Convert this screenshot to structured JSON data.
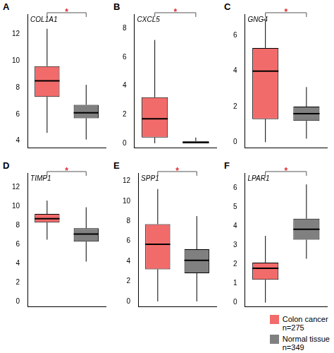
{
  "chart_data": [
    {
      "type": "boxplot",
      "panel": "A",
      "title": "COL1A1",
      "significance": "*",
      "ylim": [
        3.5,
        13.5
      ],
      "yticks": [
        4,
        6,
        8,
        10,
        12
      ],
      "tick_labels": "y",
      "grid": false,
      "series": [
        {
          "name": "Colon cancer",
          "count_label": "n=275",
          "color": "#f26b6b",
          "whisker_low": 4.6,
          "q1": 7.3,
          "median": 8.5,
          "q3": 9.6,
          "whisker_high": 12.4
        },
        {
          "name": "Normal tissue",
          "count_label": "n=349",
          "color": "#808080",
          "whisker_low": 4.1,
          "q1": 5.7,
          "median": 6.1,
          "q3": 6.7,
          "whisker_high": 8.2
        }
      ]
    },
    {
      "type": "boxplot",
      "panel": "B",
      "title": "CXCL5",
      "significance": "*",
      "ylim": [
        -0.3,
        9
      ],
      "yticks": [
        0,
        2,
        4,
        6,
        8
      ],
      "tick_labels": "y",
      "grid": false,
      "series": [
        {
          "name": "Colon cancer",
          "count_label": "n=275",
          "color": "#f26b6b",
          "whisker_low": 0,
          "q1": 0.4,
          "median": 1.7,
          "q3": 3.2,
          "whisker_high": 7.2
        },
        {
          "name": "Normal tissue",
          "count_label": "n=349",
          "color": "#808080",
          "whisker_low": 0,
          "q1": 0,
          "median": 0.05,
          "q3": 0.15,
          "whisker_high": 0.4
        }
      ]
    },
    {
      "type": "boxplot",
      "panel": "C",
      "title": "GNG4",
      "significance": "*",
      "ylim": [
        -0.3,
        7.2
      ],
      "yticks": [
        0,
        2,
        4,
        6
      ],
      "tick_labels": "y",
      "grid": false,
      "series": [
        {
          "name": "Colon cancer",
          "count_label": "n=275",
          "color": "#f26b6b",
          "whisker_low": 0,
          "q1": 1.3,
          "median": 4.0,
          "q3": 5.3,
          "whisker_high": 6.8
        },
        {
          "name": "Normal tissue",
          "count_label": "n=349",
          "color": "#808080",
          "whisker_low": 0.2,
          "q1": 1.2,
          "median": 1.6,
          "q3": 2.0,
          "whisker_high": 3.1
        }
      ]
    },
    {
      "type": "boxplot",
      "panel": "D",
      "title": "TIMP1",
      "significance": "*",
      "ylim": [
        -0.5,
        13.5
      ],
      "yticks": [
        0,
        2,
        4,
        6,
        8,
        10,
        12
      ],
      "tick_labels": "y",
      "grid": false,
      "series": [
        {
          "name": "Colon cancer",
          "count_label": "n=275",
          "color": "#f26b6b",
          "whisker_low": 6.5,
          "q1": 8.3,
          "median": 8.7,
          "q3": 9.2,
          "whisker_high": 10.6
        },
        {
          "name": "Normal tissue",
          "count_label": "n=349",
          "color": "#808080",
          "whisker_low": 4.2,
          "q1": 6.3,
          "median": 7.1,
          "q3": 7.7,
          "whisker_high": 9.9
        }
      ]
    },
    {
      "type": "boxplot",
      "panel": "E",
      "title": "SPP1",
      "significance": "*",
      "ylim": [
        -0.5,
        12.8
      ],
      "yticks": [
        0,
        2,
        4,
        6,
        8,
        10,
        12
      ],
      "tick_labels": "y",
      "grid": false,
      "series": [
        {
          "name": "Colon cancer",
          "count_label": "n=275",
          "color": "#f26b6b",
          "whisker_low": 0,
          "q1": 3.2,
          "median": 5.7,
          "q3": 7.7,
          "whisker_high": 11.2
        },
        {
          "name": "Normal tissue",
          "count_label": "n=349",
          "color": "#808080",
          "whisker_low": 0,
          "q1": 2.8,
          "median": 4.1,
          "q3": 5.2,
          "whisker_high": 8.5
        }
      ]
    },
    {
      "type": "boxplot",
      "panel": "F",
      "title": "LPAR1",
      "significance": "*",
      "ylim": [
        -0.2,
        6.8
      ],
      "yticks": [
        0,
        1,
        2,
        3,
        4,
        5,
        6
      ],
      "tick_labels": "y",
      "grid": false,
      "series": [
        {
          "name": "Colon cancer",
          "count_label": "n=275",
          "color": "#f26b6b",
          "whisker_low": 0,
          "q1": 1.2,
          "median": 1.8,
          "q3": 2.1,
          "whisker_high": 3.5
        },
        {
          "name": "Normal tissue",
          "count_label": "n=349",
          "color": "#808080",
          "whisker_low": 2.3,
          "q1": 3.3,
          "median": 3.85,
          "q3": 4.4,
          "whisker_high": 6.2
        }
      ]
    }
  ]
}
